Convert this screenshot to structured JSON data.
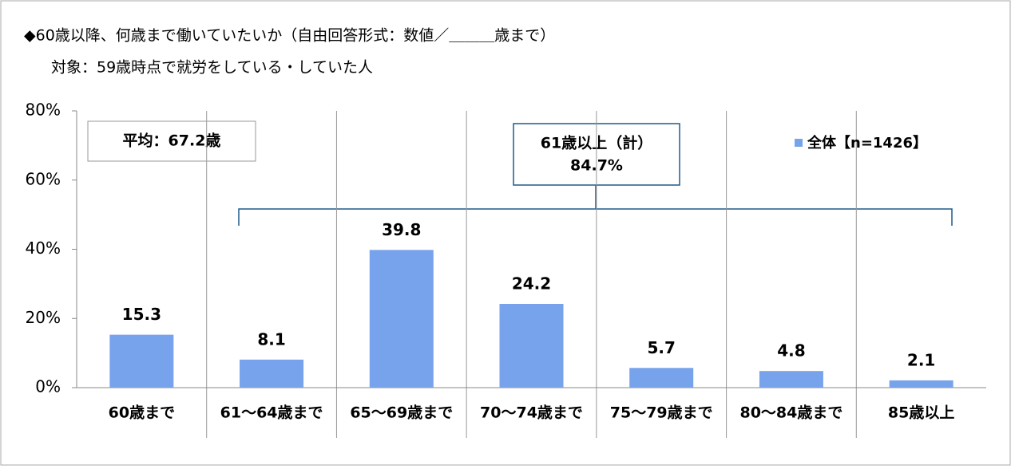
{
  "chart_data": {
    "type": "bar",
    "title": "◆60歳以降、何歳まで働いていたいか（自由回答形式：数値／＿＿＿歳まで）",
    "subtitle": "対象：59歳時点で就労をしている・していた人",
    "categories": [
      "60歳まで",
      "61～64歳まで",
      "65～69歳まで",
      "70～74歳まで",
      "75～79歳まで",
      "80～84歳まで",
      "85歳以上"
    ],
    "series": [
      {
        "name": "全体【n=1426】",
        "color": "#77a2ec",
        "values": [
          15.3,
          8.1,
          39.8,
          24.2,
          5.7,
          4.8,
          2.1
        ]
      }
    ],
    "ylim": [
      0,
      80
    ],
    "yticks": [
      {
        "value": 0,
        "label": "0%"
      },
      {
        "value": 20,
        "label": "20%"
      },
      {
        "value": 40,
        "label": "40%"
      },
      {
        "value": 60,
        "label": "60%"
      },
      {
        "value": 80,
        "label": "80%"
      }
    ],
    "legend": "top-right",
    "annotations": [
      "平均：67.2歳",
      "61歳以上（計）",
      "84.7%"
    ]
  }
}
